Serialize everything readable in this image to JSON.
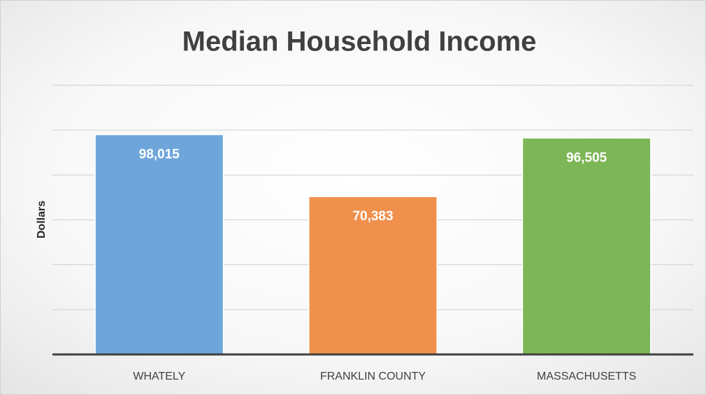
{
  "chart_data": {
    "type": "bar",
    "title": "Median Household Income",
    "y_label": "Dollars",
    "categories": [
      "WHATELY",
      "FRANKLIN COUNTY",
      "MASSACHUSETTS"
    ],
    "values": [
      98015,
      70383,
      96505
    ],
    "value_labels": [
      "98,015",
      "70,383",
      "96,505"
    ],
    "colors": [
      "#6ea6db",
      "#f0904d",
      "#7db656"
    ],
    "ylim": [
      0,
      120000
    ],
    "yticks": [
      0,
      20000,
      40000,
      60000,
      80000,
      100000,
      120000
    ],
    "grid": true
  }
}
